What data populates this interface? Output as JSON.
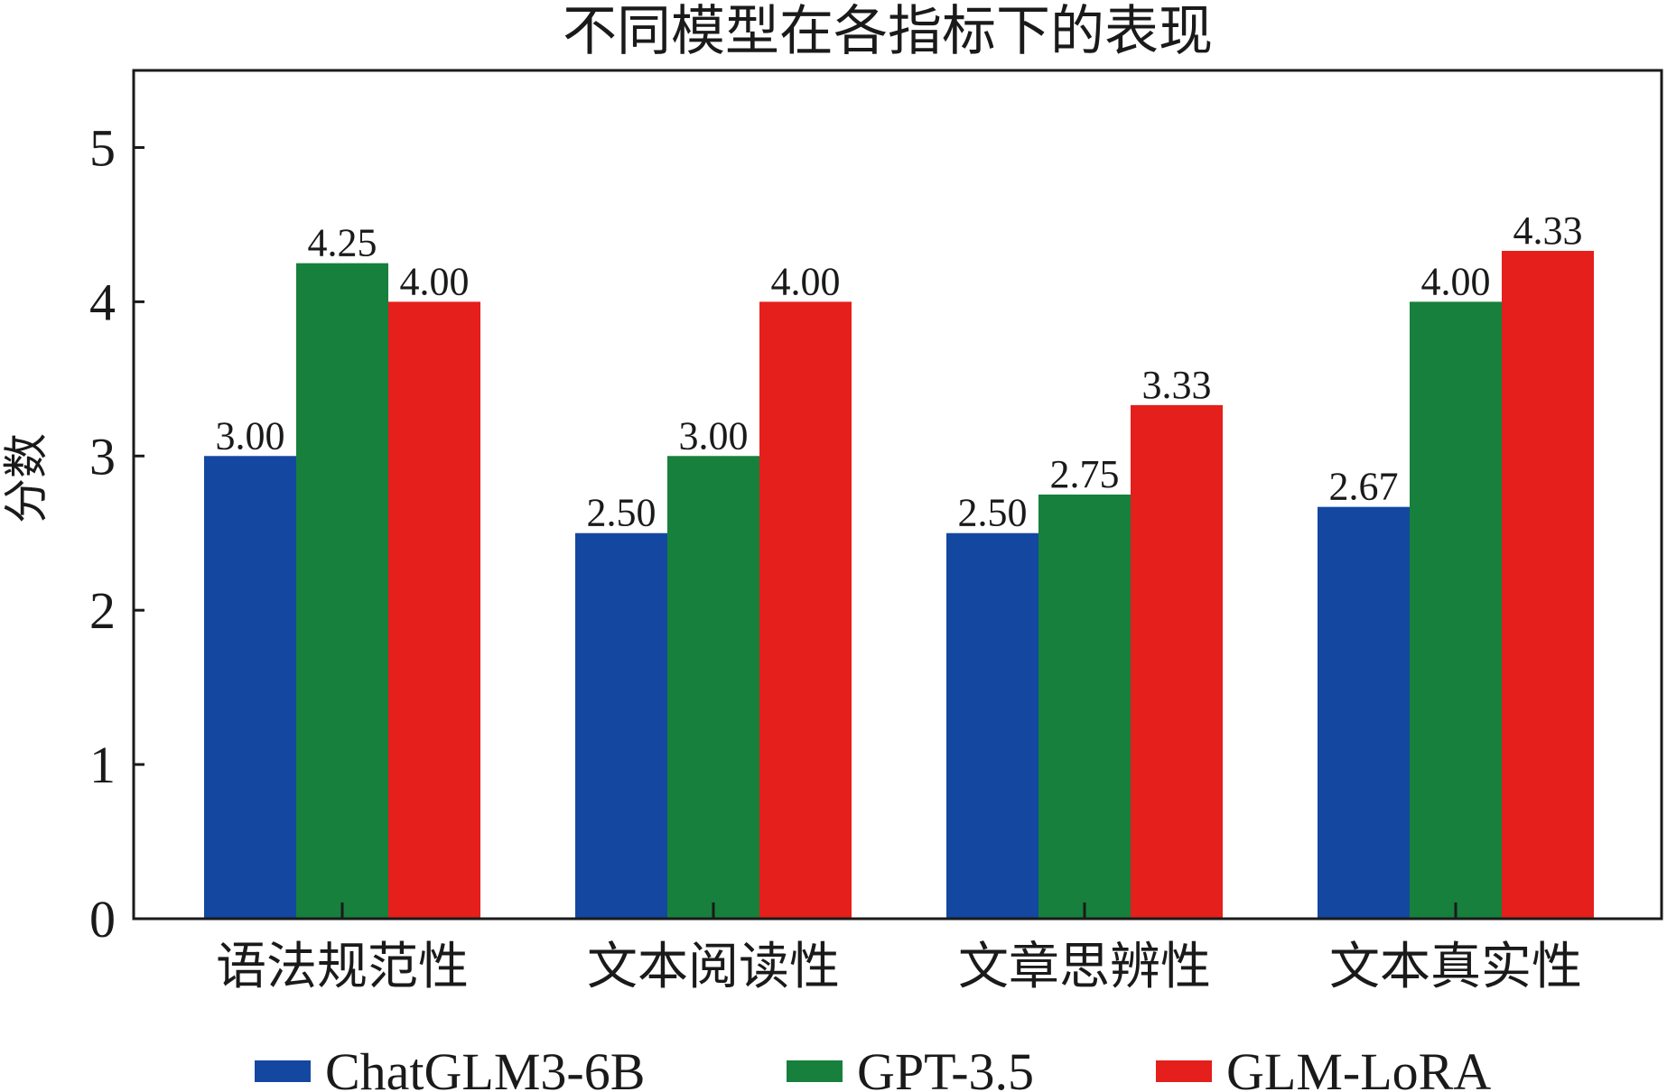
{
  "chart_data": {
    "type": "bar",
    "title": "不同模型在各指标下的表现",
    "xlabel": "",
    "ylabel": "分数",
    "ylim": [
      0,
      5.5
    ],
    "yticks": [
      "0",
      "1",
      "2",
      "3",
      "4",
      "5"
    ],
    "grid": false,
    "legend_position": "bottom",
    "categories": [
      "语法规范性",
      "文本阅读性",
      "文章思辨性",
      "文本真实性"
    ],
    "series": [
      {
        "name": "ChatGLM3-6B",
        "color": "#1447a0",
        "values": [
          3.0,
          2.5,
          2.5,
          2.67
        ],
        "labels": [
          "3.00",
          "2.50",
          "2.50",
          "2.67"
        ]
      },
      {
        "name": "GPT-3.5",
        "color": "#17803c",
        "values": [
          4.25,
          3.0,
          2.75,
          4.0
        ],
        "labels": [
          "4.25",
          "3.00",
          "2.75",
          "4.00"
        ]
      },
      {
        "name": "GLM-LoRA",
        "color": "#e41f1c",
        "values": [
          4.0,
          4.0,
          3.33,
          4.33
        ],
        "labels": [
          "4.00",
          "4.00",
          "3.33",
          "4.33"
        ]
      }
    ]
  }
}
